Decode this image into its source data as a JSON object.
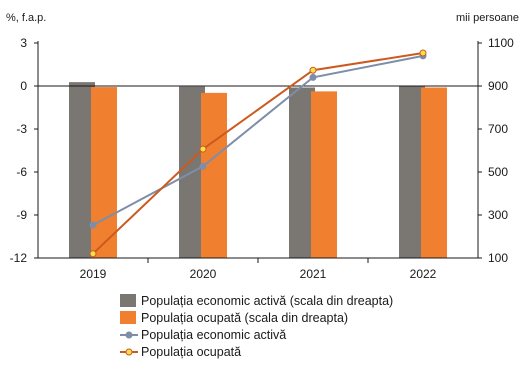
{
  "chart_data": {
    "type": "bar",
    "categories": [
      "2019",
      "2020",
      "2021",
      "2022"
    ],
    "left_axis": {
      "unit_label": "%, f.a.p.",
      "ylim": [
        -12,
        3
      ],
      "ticks": [
        3,
        0,
        -3,
        -6,
        -9,
        -12
      ]
    },
    "right_axis": {
      "unit_label": "mii persoane",
      "ylim": [
        100,
        1100
      ],
      "ticks": [
        1100,
        900,
        700,
        500,
        300,
        100
      ]
    },
    "series": [
      {
        "name": "Populația economic activă (scala din dreapta)",
        "kind": "bar",
        "axis": "right",
        "color": "#7a7672",
        "values": [
          918,
          897,
          893,
          901
        ]
      },
      {
        "name": "Populația ocupată (scala din dreapta)",
        "kind": "bar",
        "axis": "right",
        "color": "#f08030",
        "values": [
          895,
          868,
          875,
          893
        ]
      },
      {
        "name": "Populația economic activă",
        "kind": "line",
        "axis": "left",
        "color": "#7e8ea8",
        "values": [
          -9.7,
          -5.6,
          0.6,
          2.1
        ]
      },
      {
        "name": "Populația ocupată",
        "kind": "line",
        "axis": "left",
        "color": "#cc5a1e",
        "marker_fill": "#f4e04a",
        "values": [
          -11.7,
          -4.4,
          1.1,
          2.3
        ]
      }
    ],
    "grid": false,
    "legend_position": "bottom"
  }
}
